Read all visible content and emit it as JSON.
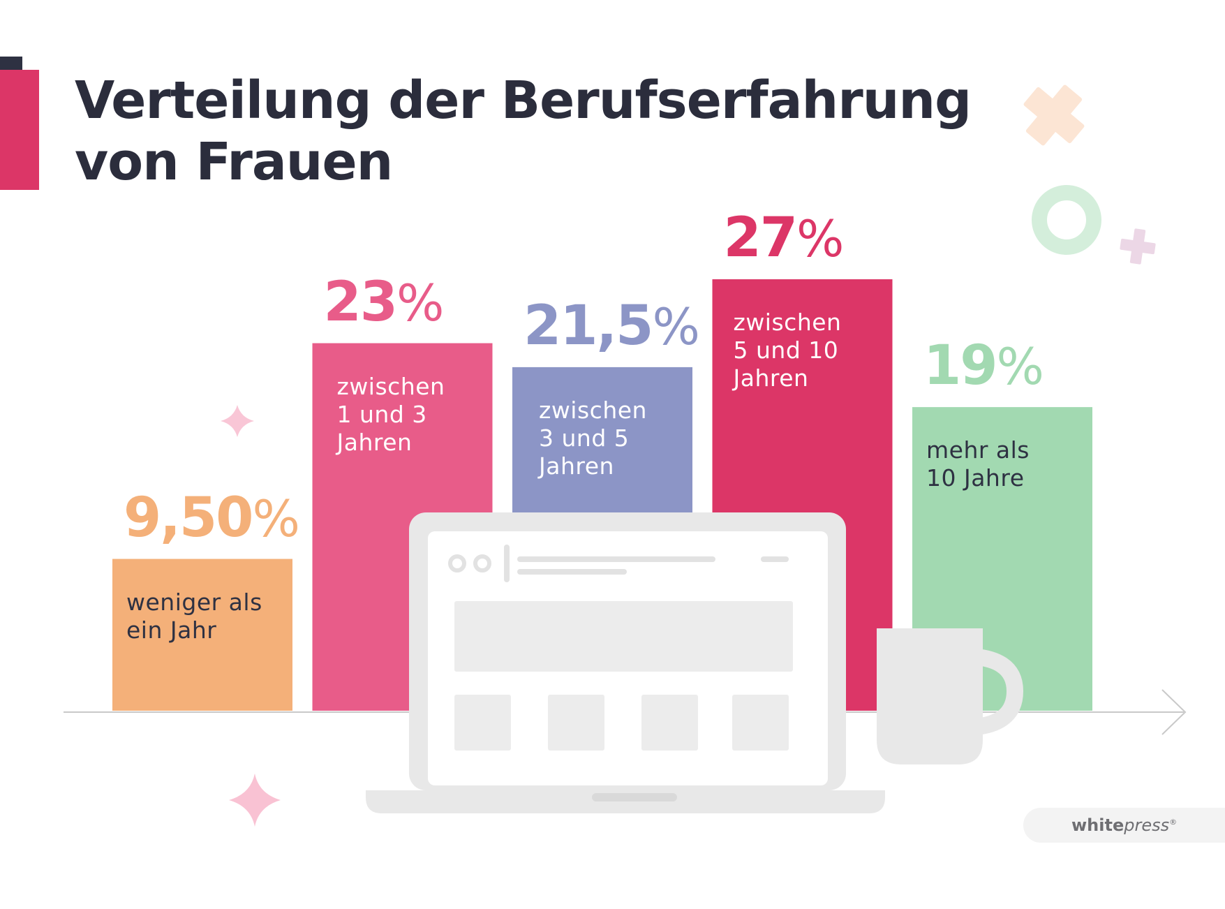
{
  "title_line1": "Verteilung der Berufserfahrung",
  "title_line2": "von Frauen",
  "logo": {
    "bold": "white",
    "italic": "press",
    "mark": "®"
  },
  "colors": {
    "title": "#2b2d3c",
    "accent_red": "#dc3667",
    "accent_navy": "#2e3142",
    "axis": "#c9c9c9"
  },
  "chart_data": {
    "type": "bar",
    "title": "Verteilung der Berufserfahrung von Frauen",
    "categories": [
      "weniger als ein Jahr",
      "zwischen 1 und 3 Jahren",
      "zwischen 3 und 5 Jahren",
      "zwischen 5 und 10 Jahren",
      "mehr als 10 Jahre"
    ],
    "values": [
      9.5,
      23,
      21.5,
      27,
      19
    ],
    "value_labels": [
      "9,50",
      "23",
      "21,5",
      "27",
      "19"
    ],
    "unit": "%",
    "bar_labels": [
      "weniger als\nein Jahr",
      "zwischen\n1 und 3\nJahren",
      "zwischen\n3 und 5\nJahren",
      "zwischen\n5 und 10\nJahren",
      "mehr als\n10 Jahre"
    ],
    "bar_colors": [
      "#f4b079",
      "#e85c89",
      "#8c95c6",
      "#dc3667",
      "#a2d9b1"
    ],
    "label_colors": [
      "#2e3142",
      "#ffffff",
      "#ffffff",
      "#ffffff",
      "#2e3142"
    ],
    "pct_colors": [
      "#f4b079",
      "#e85c89",
      "#8c95c6",
      "#dc3667",
      "#a2d9b1"
    ],
    "ylim": [
      0,
      27
    ],
    "grid": false,
    "legend": "none"
  }
}
